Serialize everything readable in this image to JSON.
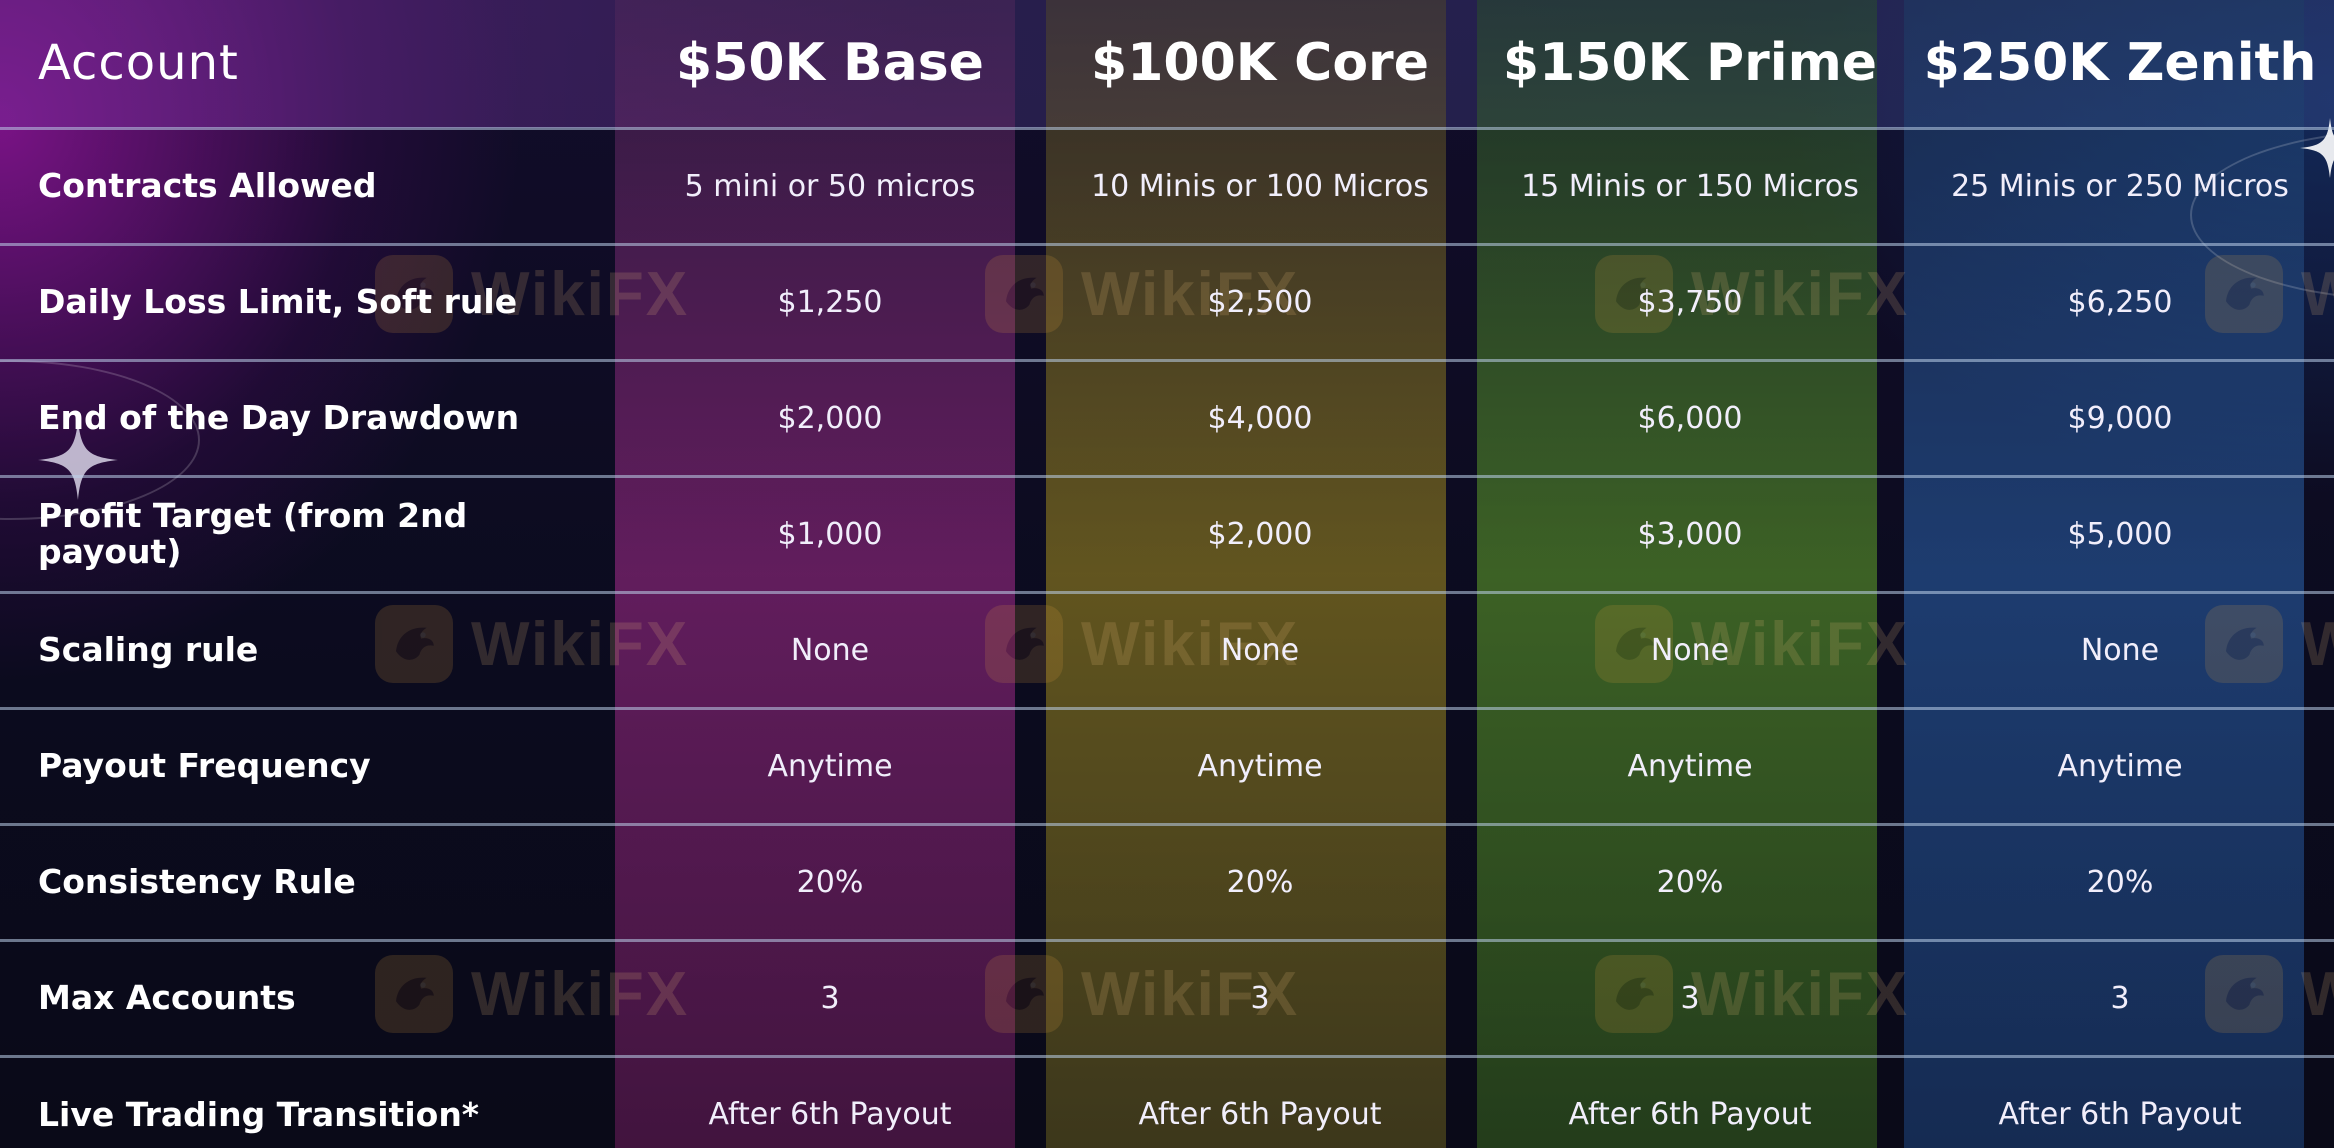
{
  "colors": {
    "page_background": "#0b0b1e",
    "base_accent": "#962a82",
    "core_accent": "#968220",
    "prime_accent": "#5a9628",
    "zenith_accent": "#285aa0",
    "divider": "#bed2eb"
  },
  "icons": [
    "sparkle-icon",
    "wikifx-logo-icon"
  ],
  "table": {
    "header_label": "Account",
    "plans": [
      {
        "name": "$50K Base"
      },
      {
        "name": "$100K Core"
      },
      {
        "name": "$150K Prime"
      },
      {
        "name": "$250K Zenith"
      }
    ],
    "rows": [
      {
        "label": "Contracts Allowed",
        "values": [
          "5 mini or 50 micros",
          "10 Minis or 100 Micros",
          "15 Minis or 150 Micros",
          "25 Minis or 250 Micros"
        ]
      },
      {
        "label": "Daily Loss Limit, Soft rule",
        "values": [
          "$1,250",
          "$2,500",
          "$3,750",
          "$6,250"
        ]
      },
      {
        "label": "End of the Day Drawdown",
        "values": [
          "$2,000",
          "$4,000",
          "$6,000",
          "$9,000"
        ]
      },
      {
        "label": "Profit Target (from 2nd payout)",
        "values": [
          "$1,000",
          "$2,000",
          "$3,000",
          "$5,000"
        ]
      },
      {
        "label": "Scaling rule",
        "values": [
          "None",
          "None",
          "None",
          "None"
        ]
      },
      {
        "label": "Payout Frequency",
        "values": [
          "Anytime",
          "Anytime",
          "Anytime",
          "Anytime"
        ]
      },
      {
        "label": "Consistency Rule",
        "values": [
          "20%",
          "20%",
          "20%",
          "20%"
        ]
      },
      {
        "label": "Max Accounts",
        "values": [
          "3",
          "3",
          "3",
          "3"
        ]
      },
      {
        "label": "Live Trading Transition*",
        "values": [
          "After 6th Payout",
          "After 6th Payout",
          "After 6th Payout",
          "After 6th Payout"
        ]
      }
    ]
  },
  "watermark": {
    "text": "WikiFX"
  }
}
